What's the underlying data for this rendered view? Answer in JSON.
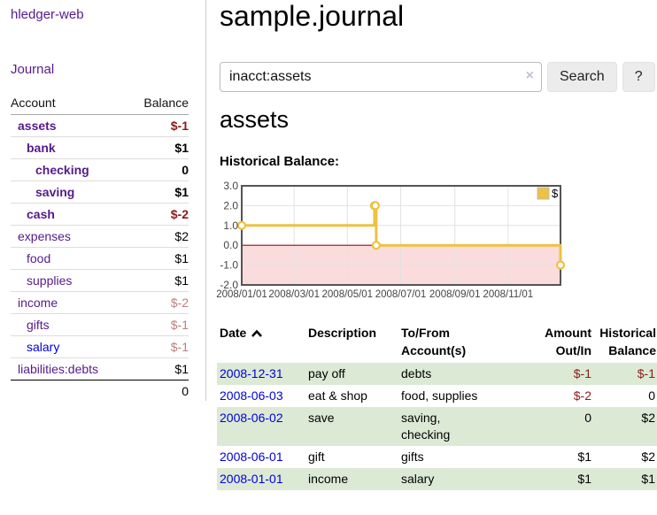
{
  "app_title": "hledger-web",
  "sidebar": {
    "journal_link": "Journal",
    "account_header": "Account",
    "balance_header": "Balance",
    "accounts": [
      {
        "name": "assets",
        "balance": "$-1",
        "depth": 1,
        "bold": true,
        "neg": "strong",
        "blue": false
      },
      {
        "name": "bank",
        "balance": "$1",
        "depth": 2,
        "bold": true,
        "neg": null,
        "blue": false
      },
      {
        "name": "checking",
        "balance": "0",
        "depth": 3,
        "bold": true,
        "neg": null,
        "blue": false
      },
      {
        "name": "saving",
        "balance": "$1",
        "depth": 3,
        "bold": true,
        "neg": null,
        "blue": false
      },
      {
        "name": "cash",
        "balance": "$-2",
        "depth": 2,
        "bold": true,
        "neg": "strong",
        "blue": false
      },
      {
        "name": "expenses",
        "balance": "$2",
        "depth": 1,
        "bold": false,
        "neg": null,
        "blue": false
      },
      {
        "name": "food",
        "balance": "$1",
        "depth": 2,
        "bold": false,
        "neg": null,
        "blue": false
      },
      {
        "name": "supplies",
        "balance": "$1",
        "depth": 2,
        "bold": false,
        "neg": null,
        "blue": false
      },
      {
        "name": "income",
        "balance": "$-2",
        "depth": 1,
        "bold": false,
        "neg": "light",
        "blue": false
      },
      {
        "name": "gifts",
        "balance": "$-1",
        "depth": 2,
        "bold": false,
        "neg": "light",
        "blue": false
      },
      {
        "name": "salary",
        "balance": "$-1",
        "depth": 2,
        "bold": false,
        "neg": "light",
        "blue": true
      },
      {
        "name": "liabilities:debts",
        "balance": "$1",
        "depth": 1,
        "bold": false,
        "neg": null,
        "blue": false
      }
    ],
    "total": "0"
  },
  "main": {
    "title": "sample.journal",
    "search": {
      "value": "inacct:assets",
      "clear_icon": "×",
      "search_button": "Search",
      "help_button": "?"
    },
    "account_heading": "assets",
    "chart_label": "Historical Balance:"
  },
  "chart_data": {
    "type": "line",
    "title": "Historical Balance",
    "step": true,
    "x_range": [
      "2008-01-01",
      "2008-12-31"
    ],
    "ylim": [
      -2,
      3
    ],
    "y_ticks": [
      3.0,
      2.0,
      1.0,
      0.0,
      -1.0,
      -2.0
    ],
    "y_tick_labels": [
      "3.0",
      "2.0",
      "1.0",
      "0.0",
      "-1.0",
      "-2.0"
    ],
    "x_ticks": [
      "2008-01-01",
      "2008-03-01",
      "2008-05-01",
      "2008-07-01",
      "2008-09-01",
      "2008-11-01"
    ],
    "x_tick_labels": [
      "2008/01/01",
      "2008/03/01",
      "2008/05/01",
      "2008/07/01",
      "2008/09/01",
      "2008/11/01"
    ],
    "series": [
      {
        "name": "$",
        "points": [
          [
            "2008-01-01",
            1
          ],
          [
            "2008-06-01",
            2
          ],
          [
            "2008-06-02",
            2
          ],
          [
            "2008-06-03",
            0
          ],
          [
            "2008-12-31",
            -1
          ]
        ]
      }
    ],
    "legend": {
      "label": "$",
      "position": "top-right"
    },
    "grid": true
  },
  "register": {
    "headers": {
      "date": "Date",
      "description": "Description",
      "tofrom": "To/From Account(s)",
      "amount": "Amount Out/In",
      "balance": "Historical Balance"
    },
    "rows": [
      {
        "date": "2008-12-31",
        "description": "pay off",
        "accounts": "debts",
        "amount": "$-1",
        "balance": "$-1",
        "amount_negative": true,
        "balance_negative": true
      },
      {
        "date": "2008-06-03",
        "description": "eat & shop",
        "accounts": "food, supplies",
        "amount": "$-2",
        "balance": "0",
        "amount_negative": true,
        "balance_negative": false
      },
      {
        "date": "2008-06-02",
        "description": "save",
        "accounts": "saving, checking",
        "amount": "0",
        "balance": "$2",
        "amount_negative": false,
        "balance_negative": false
      },
      {
        "date": "2008-06-01",
        "description": "gift",
        "accounts": "gifts",
        "amount": "$1",
        "balance": "$2",
        "amount_negative": false,
        "balance_negative": false
      },
      {
        "date": "2008-01-01",
        "description": "income",
        "accounts": "salary",
        "amount": "$1",
        "balance": "$1",
        "amount_negative": false,
        "balance_negative": false
      }
    ]
  },
  "colors": {
    "link_purple": "#551a8b",
    "link_blue": "#0000dd",
    "negative_strong": "#8b1a1a",
    "negative_light": "#bc7f7f",
    "row_stripe_green": "#dcead5",
    "chart_line": "#edc240",
    "chart_negative_region": "#fbdcdc",
    "chart_zero_line": "#991111",
    "chart_grid": "#e2e2e2",
    "chart_border": "#545454"
  }
}
